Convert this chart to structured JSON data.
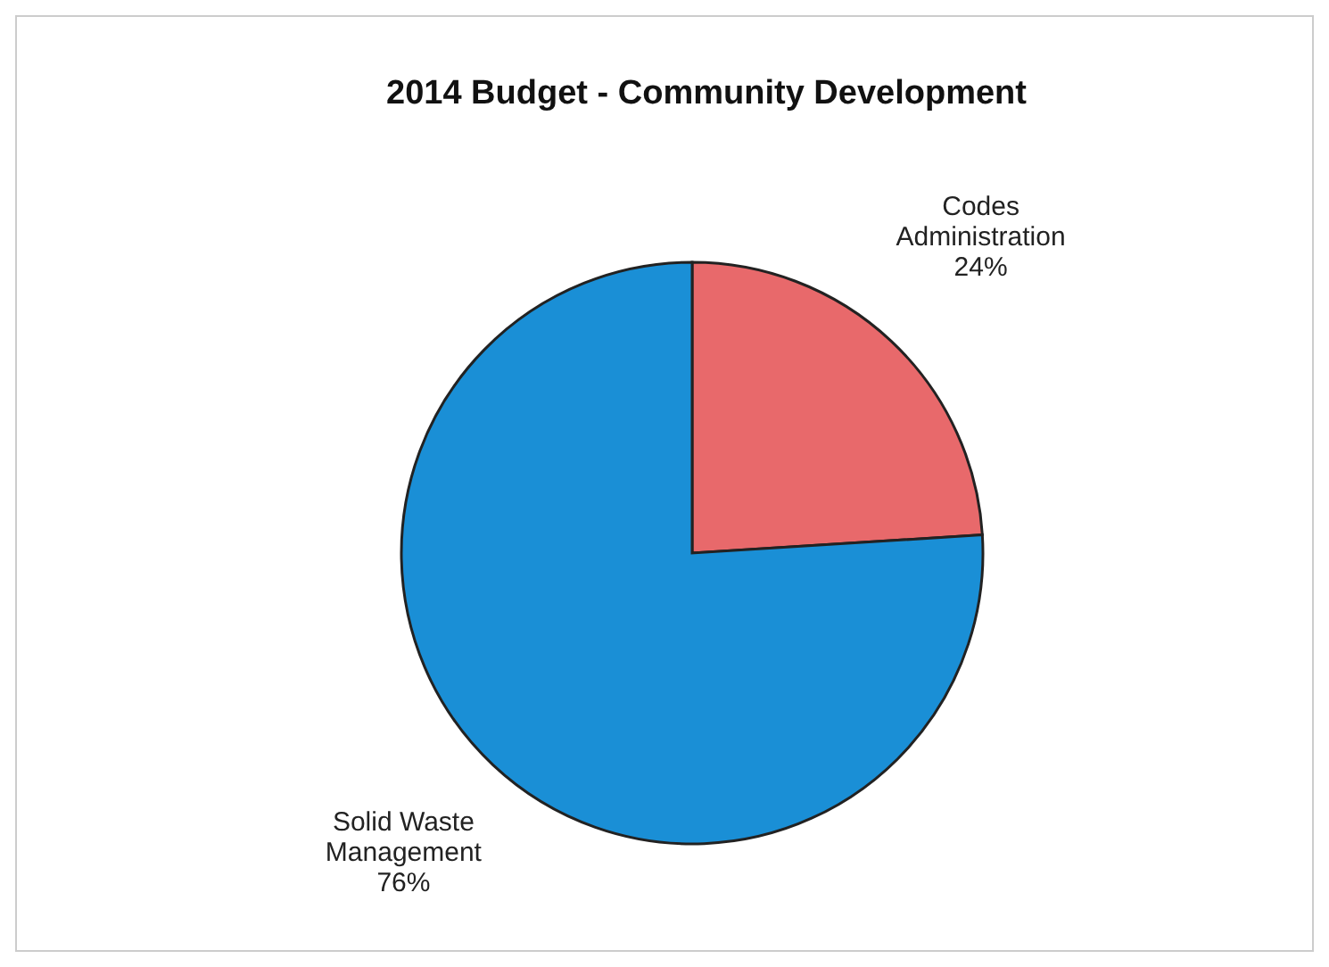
{
  "chart_data": {
    "type": "pie",
    "title": "2014 Budget - Community Development",
    "categories": [
      "Codes Administration",
      "Solid Waste Management"
    ],
    "values": [
      24,
      76
    ],
    "colors": [
      "#e8696b",
      "#1a8fd6"
    ],
    "value_labels": [
      "24%",
      "76%"
    ]
  }
}
